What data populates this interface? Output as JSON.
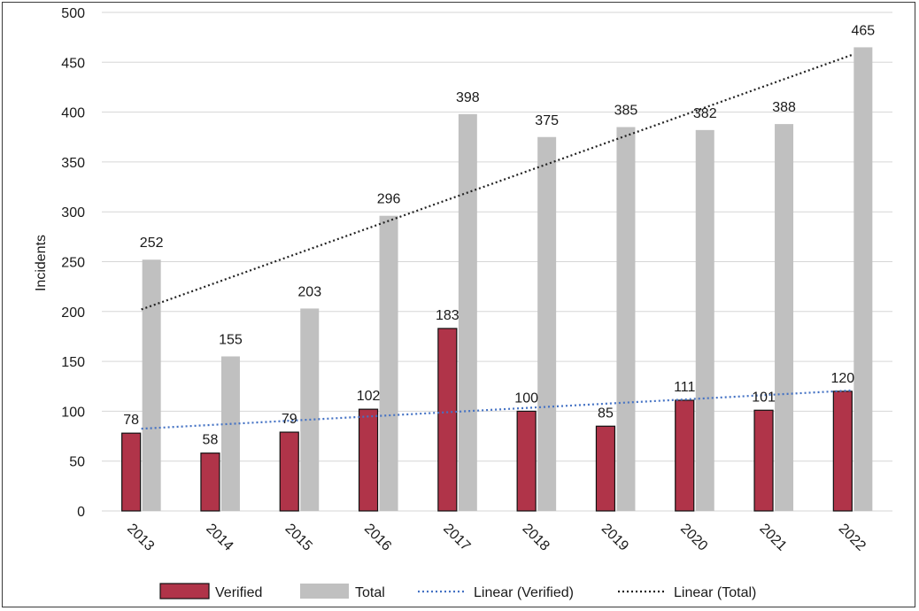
{
  "chart_data": {
    "type": "bar",
    "categories": [
      "2013",
      "2014",
      "2015",
      "2016",
      "2017",
      "2018",
      "2019",
      "2020",
      "2021",
      "2022"
    ],
    "series": [
      {
        "name": "Verified",
        "values": [
          78,
          58,
          79,
          102,
          183,
          100,
          85,
          111,
          101,
          120
        ],
        "color": "#b03449"
      },
      {
        "name": "Total",
        "values": [
          252,
          155,
          203,
          296,
          398,
          375,
          385,
          382,
          388,
          465
        ],
        "color": "#c0c0c0"
      }
    ],
    "trendlines": [
      {
        "name": "Linear (Verified)",
        "of": "Verified",
        "color": "#4472c4",
        "style": "dotted"
      },
      {
        "name": "Linear (Total)",
        "of": "Total",
        "color": "#222222",
        "style": "dotted"
      }
    ],
    "title": "",
    "xlabel": "",
    "ylabel": "Incidents",
    "ylim": [
      0,
      500
    ],
    "yticks": [
      0,
      50,
      100,
      150,
      200,
      250,
      300,
      350,
      400,
      450,
      500
    ],
    "grid": true,
    "legend_position": "bottom"
  }
}
